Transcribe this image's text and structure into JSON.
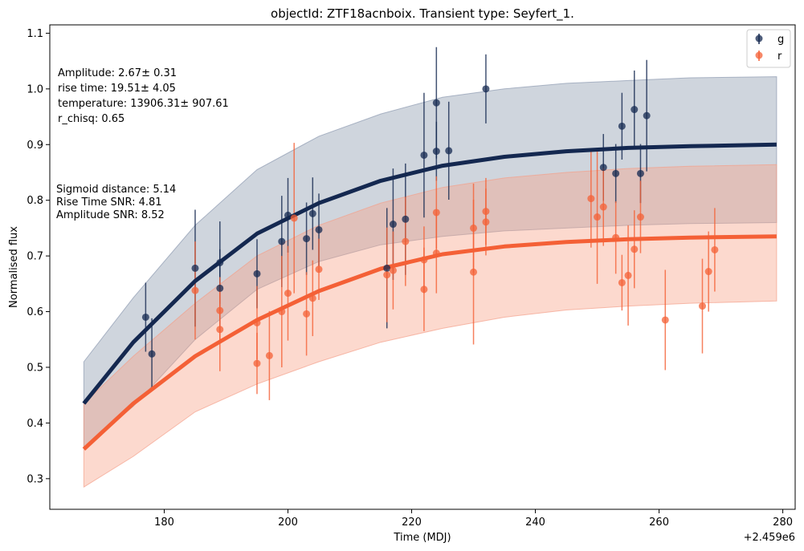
{
  "chart_data": {
    "type": "scatter",
    "title": "objectId: ZTF18acnboix. Transient type: Seyfert_1.",
    "xlabel": "Time (MDJ)",
    "ylabel": "Normalised flux",
    "x_offset_label": "+2.459e6",
    "xlim": [
      161.5,
      282
    ],
    "ylim": [
      0.245,
      1.115
    ],
    "xticks": [
      180,
      200,
      220,
      240,
      260,
      280
    ],
    "yticks": [
      0.3,
      0.4,
      0.5,
      0.6,
      0.7,
      0.8,
      0.9,
      1.0,
      1.1
    ],
    "grid": false,
    "legend_position": "top-right",
    "annotations": {
      "fit_params": [
        "Amplitude: 2.67± 0.31",
        "rise time: 19.51± 4.05",
        "temperature: 13906.31± 907.61",
        "r_chisq: 0.65"
      ],
      "metrics": [
        "Sigmoid distance: 5.14",
        "Rise Time SNR: 4.81",
        "Amplitude SNR: 8.52"
      ]
    },
    "series": [
      {
        "name": "g",
        "color": "#142850",
        "points": [
          {
            "x": 177,
            "y": 0.59,
            "err": 0.062
          },
          {
            "x": 178,
            "y": 0.524,
            "err": 0.064
          },
          {
            "x": 185,
            "y": 0.678,
            "err": 0.105
          },
          {
            "x": 189,
            "y": 0.688,
            "err": 0.074
          },
          {
            "x": 189,
            "y": 0.642,
            "err": 0.07
          },
          {
            "x": 195,
            "y": 0.668,
            "err": 0.062
          },
          {
            "x": 199,
            "y": 0.726,
            "err": 0.082
          },
          {
            "x": 200,
            "y": 0.773,
            "err": 0.067
          },
          {
            "x": 203,
            "y": 0.731,
            "err": 0.065
          },
          {
            "x": 204,
            "y": 0.776,
            "err": 0.065
          },
          {
            "x": 205,
            "y": 0.747,
            "err": 0.065
          },
          {
            "x": 216,
            "y": 0.678,
            "err": 0.108
          },
          {
            "x": 217,
            "y": 0.757,
            "err": 0.1
          },
          {
            "x": 219,
            "y": 0.766,
            "err": 0.1
          },
          {
            "x": 222,
            "y": 0.881,
            "err": 0.112
          },
          {
            "x": 224,
            "y": 0.975,
            "err": 0.1
          },
          {
            "x": 224,
            "y": 0.888,
            "err": 0.053
          },
          {
            "x": 226,
            "y": 0.889,
            "err": 0.088
          },
          {
            "x": 232,
            "y": 1.0,
            "err": 0.062
          },
          {
            "x": 251,
            "y": 0.859,
            "err": 0.06
          },
          {
            "x": 253,
            "y": 0.848,
            "err": 0.053
          },
          {
            "x": 254,
            "y": 0.933,
            "err": 0.06
          },
          {
            "x": 256,
            "y": 0.963,
            "err": 0.07
          },
          {
            "x": 257,
            "y": 0.848,
            "err": 0.053
          },
          {
            "x": 258,
            "y": 0.952,
            "err": 0.1
          }
        ],
        "fit_line": {
          "x": [
            167,
            175,
            185,
            195,
            205,
            215,
            225,
            235,
            245,
            255,
            265,
            279
          ],
          "y": [
            0.435,
            0.545,
            0.655,
            0.74,
            0.795,
            0.835,
            0.862,
            0.878,
            0.888,
            0.894,
            0.897,
            0.9
          ]
        },
        "band_upper": [
          0.51,
          0.625,
          0.755,
          0.855,
          0.915,
          0.955,
          0.985,
          1.0,
          1.01,
          1.015,
          1.02,
          1.022
        ],
        "band_lower": [
          0.355,
          0.43,
          0.55,
          0.64,
          0.69,
          0.72,
          0.735,
          0.745,
          0.75,
          0.755,
          0.758,
          0.76
        ]
      },
      {
        "name": "r",
        "color": "#f46036",
        "points": [
          {
            "x": 185,
            "y": 0.638,
            "err": 0.088
          },
          {
            "x": 189,
            "y": 0.602,
            "err": 0.06
          },
          {
            "x": 189,
            "y": 0.568,
            "err": 0.075
          },
          {
            "x": 195,
            "y": 0.58,
            "err": 0.066
          },
          {
            "x": 195,
            "y": 0.507,
            "err": 0.055
          },
          {
            "x": 197,
            "y": 0.521,
            "err": 0.08
          },
          {
            "x": 199,
            "y": 0.6,
            "err": 0.1
          },
          {
            "x": 200,
            "y": 0.633,
            "err": 0.085
          },
          {
            "x": 201,
            "y": 0.768,
            "err": 0.135
          },
          {
            "x": 203,
            "y": 0.596,
            "err": 0.075
          },
          {
            "x": 204,
            "y": 0.624,
            "err": 0.068
          },
          {
            "x": 205,
            "y": 0.676,
            "err": 0.055
          },
          {
            "x": 216,
            "y": 0.666,
            "err": 0.085
          },
          {
            "x": 217,
            "y": 0.674,
            "err": 0.07
          },
          {
            "x": 219,
            "y": 0.726,
            "err": 0.08
          },
          {
            "x": 222,
            "y": 0.64,
            "err": 0.075
          },
          {
            "x": 222,
            "y": 0.693,
            "err": 0.06
          },
          {
            "x": 224,
            "y": 0.778,
            "err": 0.065
          },
          {
            "x": 224,
            "y": 0.705,
            "err": 0.072
          },
          {
            "x": 230,
            "y": 0.75,
            "err": 0.08
          },
          {
            "x": 230,
            "y": 0.671,
            "err": 0.13
          },
          {
            "x": 232,
            "y": 0.78,
            "err": 0.06
          },
          {
            "x": 232,
            "y": 0.761,
            "err": 0.06
          },
          {
            "x": 249,
            "y": 0.803,
            "err": 0.088
          },
          {
            "x": 250,
            "y": 0.77,
            "err": 0.12
          },
          {
            "x": 251,
            "y": 0.788,
            "err": 0.07
          },
          {
            "x": 253,
            "y": 0.733,
            "err": 0.065
          },
          {
            "x": 254,
            "y": 0.652,
            "err": 0.05
          },
          {
            "x": 255,
            "y": 0.665,
            "err": 0.09
          },
          {
            "x": 256,
            "y": 0.712,
            "err": 0.07
          },
          {
            "x": 257,
            "y": 0.77,
            "err": 0.065
          },
          {
            "x": 261,
            "y": 0.585,
            "err": 0.09
          },
          {
            "x": 267,
            "y": 0.61,
            "err": 0.085
          },
          {
            "x": 268,
            "y": 0.672,
            "err": 0.072
          },
          {
            "x": 269,
            "y": 0.711,
            "err": 0.075
          }
        ],
        "fit_line": {
          "x": [
            167,
            175,
            185,
            195,
            205,
            215,
            225,
            235,
            245,
            255,
            265,
            279
          ],
          "y": [
            0.353,
            0.435,
            0.52,
            0.585,
            0.637,
            0.677,
            0.703,
            0.717,
            0.725,
            0.73,
            0.733,
            0.735
          ]
        },
        "band_upper": [
          0.435,
          0.52,
          0.615,
          0.7,
          0.755,
          0.795,
          0.823,
          0.84,
          0.85,
          0.857,
          0.861,
          0.864
        ],
        "band_lower": [
          0.285,
          0.34,
          0.42,
          0.47,
          0.51,
          0.545,
          0.57,
          0.59,
          0.603,
          0.61,
          0.615,
          0.619
        ]
      }
    ]
  }
}
